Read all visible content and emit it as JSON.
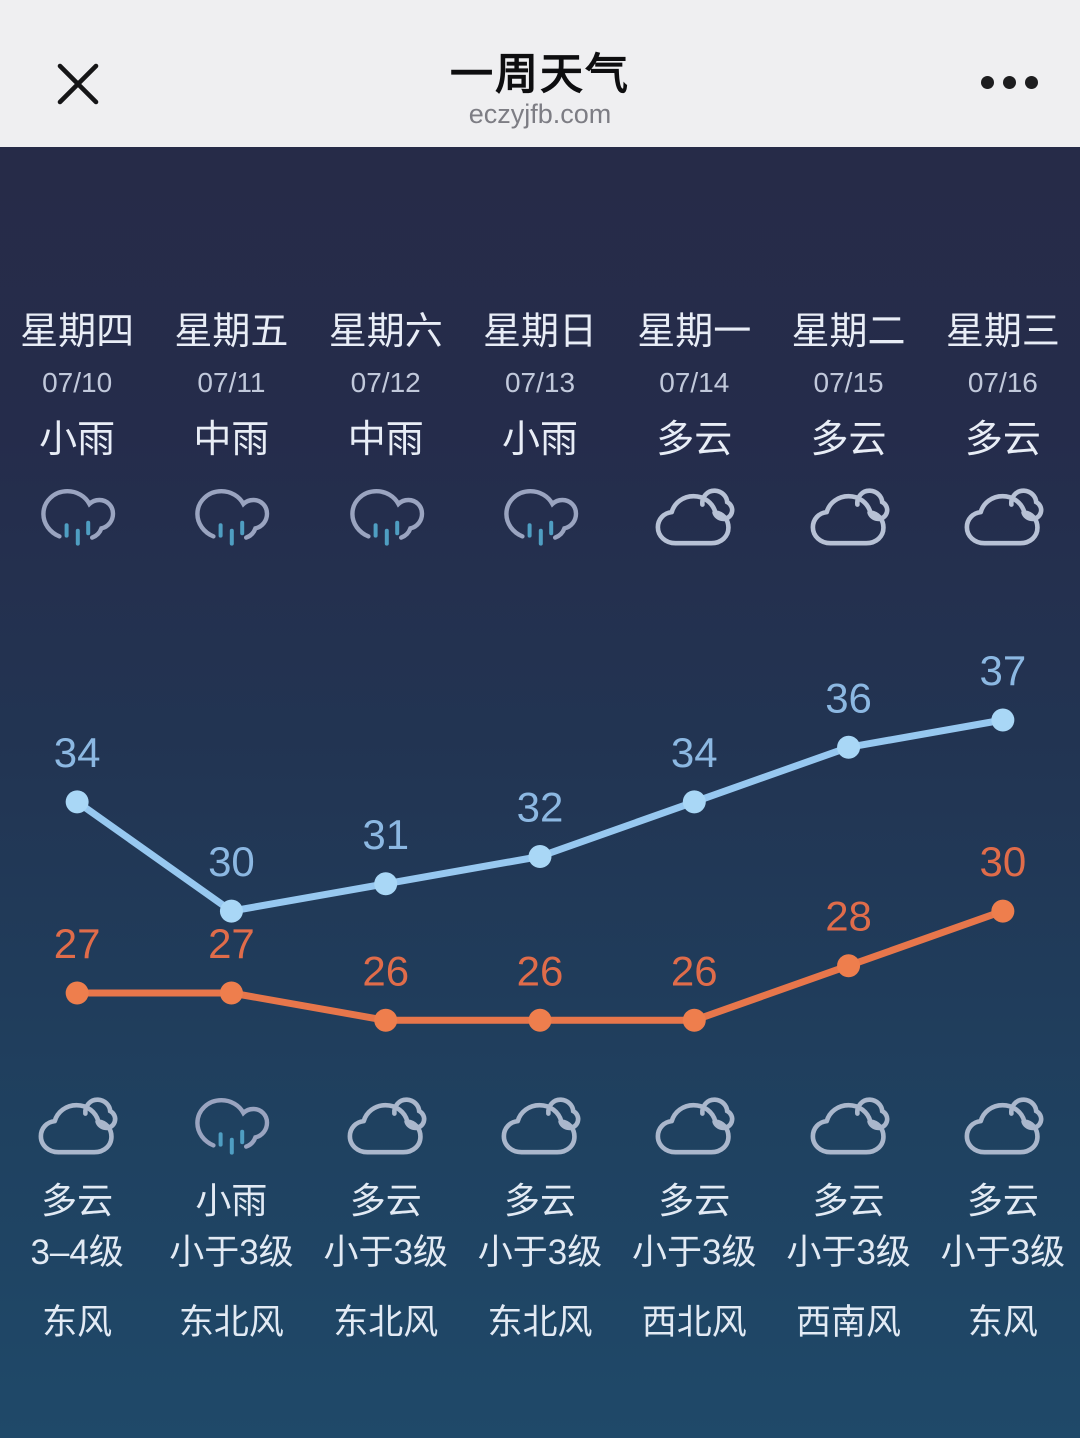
{
  "header": {
    "title": "一周天气",
    "source_url": "eczyjfb.com"
  },
  "days": [
    {
      "weekday": "星期四",
      "date": "07/10",
      "condition": "小雨",
      "icon": "rain-icon",
      "detail": {
        "condition": "多云",
        "icon": "cloudy-icon",
        "wind_level": "3–4级",
        "wind_direction": "东风"
      }
    },
    {
      "weekday": "星期五",
      "date": "07/11",
      "condition": "中雨",
      "icon": "rain-icon",
      "detail": {
        "condition": "小雨",
        "icon": "rain-icon",
        "wind_level": "小于3级",
        "wind_direction": "东北风"
      }
    },
    {
      "weekday": "星期六",
      "date": "07/12",
      "condition": "中雨",
      "icon": "rain-icon",
      "detail": {
        "condition": "多云",
        "icon": "cloudy-icon",
        "wind_level": "小于3级",
        "wind_direction": "东北风"
      }
    },
    {
      "weekday": "星期日",
      "date": "07/13",
      "condition": "小雨",
      "icon": "rain-icon",
      "detail": {
        "condition": "多云",
        "icon": "cloudy-icon",
        "wind_level": "小于3级",
        "wind_direction": "东北风"
      }
    },
    {
      "weekday": "星期一",
      "date": "07/14",
      "condition": "多云",
      "icon": "cloudy-icon",
      "detail": {
        "condition": "多云",
        "icon": "cloudy-icon",
        "wind_level": "小于3级",
        "wind_direction": "西北风"
      }
    },
    {
      "weekday": "星期二",
      "date": "07/15",
      "condition": "多云",
      "icon": "cloudy-icon",
      "detail": {
        "condition": "多云",
        "icon": "cloudy-icon",
        "wind_level": "小于3级",
        "wind_direction": "西南风"
      }
    },
    {
      "weekday": "星期三",
      "date": "07/16",
      "condition": "多云",
      "icon": "cloudy-icon",
      "detail": {
        "condition": "多云",
        "icon": "cloudy-icon",
        "wind_level": "小于3级",
        "wind_direction": "东风"
      }
    }
  ],
  "chart_data": {
    "type": "line",
    "categories": [
      "07/10",
      "07/11",
      "07/12",
      "07/13",
      "07/14",
      "07/15",
      "07/16"
    ],
    "series": [
      {
        "name": "high_temperature",
        "values": [
          34,
          30,
          31,
          32,
          34,
          36,
          37
        ],
        "line_color": "#97c8f0",
        "dot_color": "#a9d7f6",
        "label_color": "#8cb8e2"
      },
      {
        "name": "low_temperature",
        "values": [
          27,
          27,
          26,
          26,
          26,
          28,
          30
        ],
        "line_color": "#e7764b",
        "dot_color": "#ee7e4d",
        "label_color": "#e06c4a"
      }
    ],
    "ylim": [
      25,
      39
    ],
    "grid": false,
    "legend": "none",
    "data_labels": true
  },
  "icons": {
    "close": "close-icon",
    "more": "more-icon",
    "rain": "rain-icon",
    "cloudy": "cloudy-icon"
  },
  "colors": {
    "header_background": "#efeff1",
    "header_text": "#0e0e10",
    "url_text": "#7d7d84",
    "background_top": "#262b48",
    "background_bottom": "#1f4969",
    "primary_text": "#e8edf6",
    "secondary_text": "#c1c9db",
    "high_temp": "#97c8f0",
    "low_temp": "#e7764b",
    "day_rain_cloud": "#9aa4c0",
    "day_rain_drops": "#4f9ec2",
    "day_cloud": "#b7c1d5",
    "detail_cloud": "#aab7cc"
  }
}
